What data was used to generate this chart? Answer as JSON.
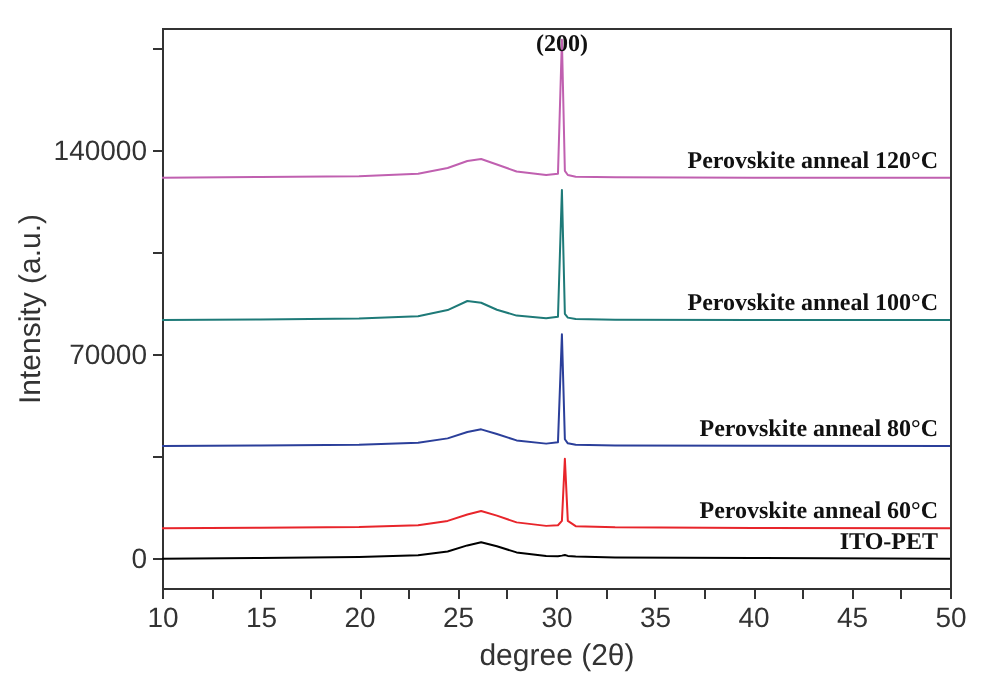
{
  "chart_data": {
    "type": "line",
    "xlabel": "degree (2θ)",
    "ylabel": "Intensity (a.u.)",
    "x": [
      10,
      15,
      20,
      23,
      24.5,
      25.5,
      26.2,
      27,
      28,
      29.5,
      30.1,
      30.3,
      30.45,
      30.6,
      31,
      33,
      40,
      50
    ],
    "series": [
      {
        "name": "ITO-PET",
        "color": "#000000",
        "values": [
          0,
          300,
          600,
          1200,
          2500,
          4600,
          5700,
          4300,
          2200,
          1000,
          900,
          1100,
          1300,
          1000,
          800,
          500,
          300,
          0
        ]
      },
      {
        "name": "Perovskite anneal   60°C",
        "color": "#e8252b",
        "values": [
          10500,
          10700,
          10900,
          11500,
          13000,
          15200,
          16400,
          14800,
          12500,
          11300,
          11500,
          13000,
          34300,
          13000,
          11200,
          10800,
          10600,
          10500
        ]
      },
      {
        "name": "Perovskite anneal   80°C",
        "color": "#2b3f9a",
        "values": [
          38700,
          38900,
          39100,
          39800,
          41300,
          43500,
          44400,
          42800,
          40600,
          39500,
          40000,
          77000,
          41000,
          39600,
          39100,
          38900,
          38800,
          38700
        ]
      },
      {
        "name": "Perovskite anneal   100°C",
        "color": "#1e7a78",
        "values": [
          81900,
          82100,
          82400,
          83200,
          85300,
          88400,
          87800,
          85400,
          83400,
          82500,
          83000,
          126500,
          84000,
          82700,
          82200,
          82000,
          81900,
          81900
        ]
      },
      {
        "name": "Perovskite anneal   120°C",
        "color": "#c060b0",
        "values": [
          130700,
          130900,
          131200,
          132000,
          134000,
          136400,
          137100,
          135200,
          132800,
          131600,
          132000,
          178000,
          133000,
          131600,
          131000,
          130800,
          130700,
          130700
        ]
      }
    ],
    "annotations": [
      {
        "text": "(200)",
        "x": 30.3,
        "y": 177000
      }
    ],
    "xlim": [
      10,
      50
    ],
    "ylim": [
      -10000,
      182000
    ],
    "xticks": [
      10,
      {
        "value": 12.5,
        "label": null
      },
      15,
      {
        "value": 17.5,
        "label": null
      },
      20,
      {
        "value": 22.5,
        "label": null
      },
      25,
      {
        "value": 27.5,
        "label": null
      },
      30,
      {
        "value": 32.5,
        "label": null
      },
      35,
      {
        "value": 37.5,
        "label": null
      },
      40,
      {
        "value": 42.5,
        "label": null
      },
      45,
      {
        "value": 47.5,
        "label": null
      },
      50
    ],
    "yticks": [
      0,
      {
        "value": 35000,
        "label": null
      },
      70000,
      {
        "value": 105000,
        "label": null
      },
      140000,
      {
        "value": 175000,
        "label": null
      }
    ],
    "line_style": "solid"
  }
}
